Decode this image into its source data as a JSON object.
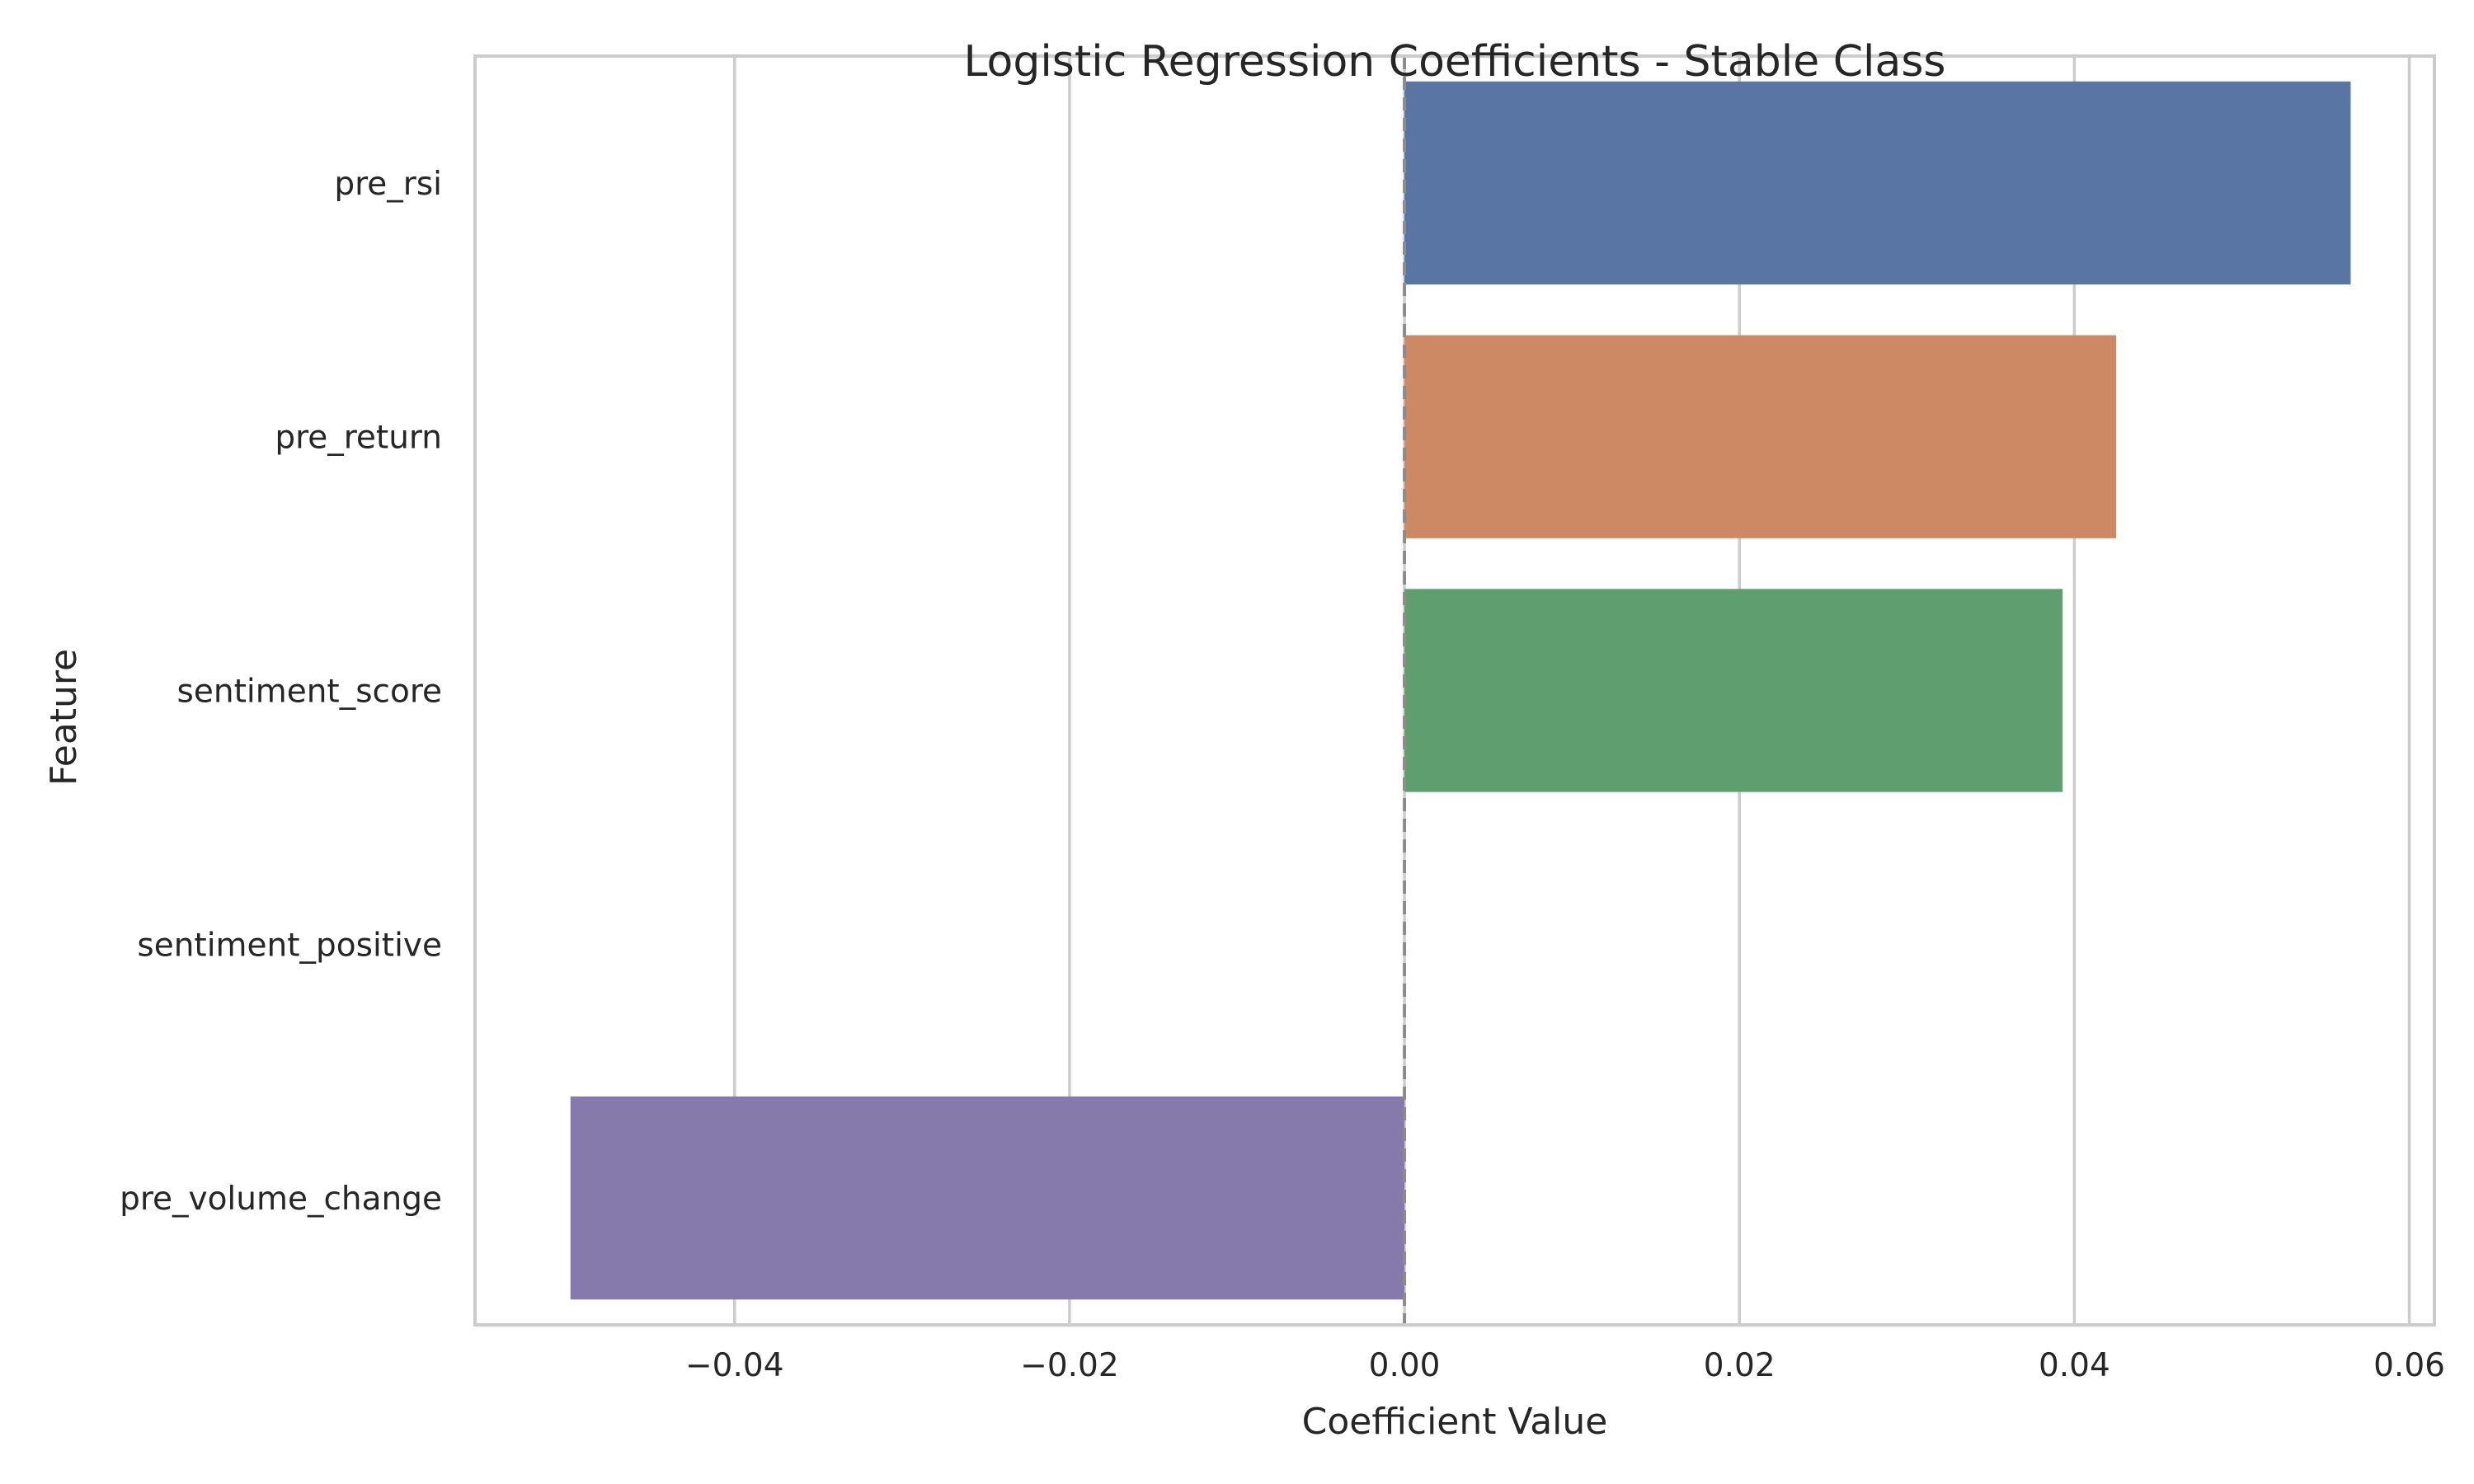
{
  "chart_data": {
    "type": "bar",
    "orientation": "horizontal",
    "title": "Logistic Regression Coefficients - Stable Class",
    "xlabel": "Coefficient Value",
    "ylabel": "Feature",
    "categories": [
      "pre_rsi",
      "pre_return",
      "sentiment_score",
      "sentiment_positive",
      "pre_volume_change"
    ],
    "values": [
      0.0565,
      0.0425,
      0.0393,
      0.0,
      -0.0498
    ],
    "colors": [
      "#5875a4",
      "#cc8963",
      "#5f9e6e",
      "#b55d60",
      "#857aab"
    ],
    "xlim": [
      -0.0555,
      0.0615
    ],
    "xticks": [
      -0.04,
      -0.02,
      0.0,
      0.02,
      0.04,
      0.06
    ],
    "xtick_labels": [
      "−0.04",
      "−0.02",
      "0.00",
      "0.02",
      "0.04",
      "0.06"
    ],
    "grid": true,
    "reference_line": {
      "x": 0.0,
      "style": "dashed"
    }
  }
}
